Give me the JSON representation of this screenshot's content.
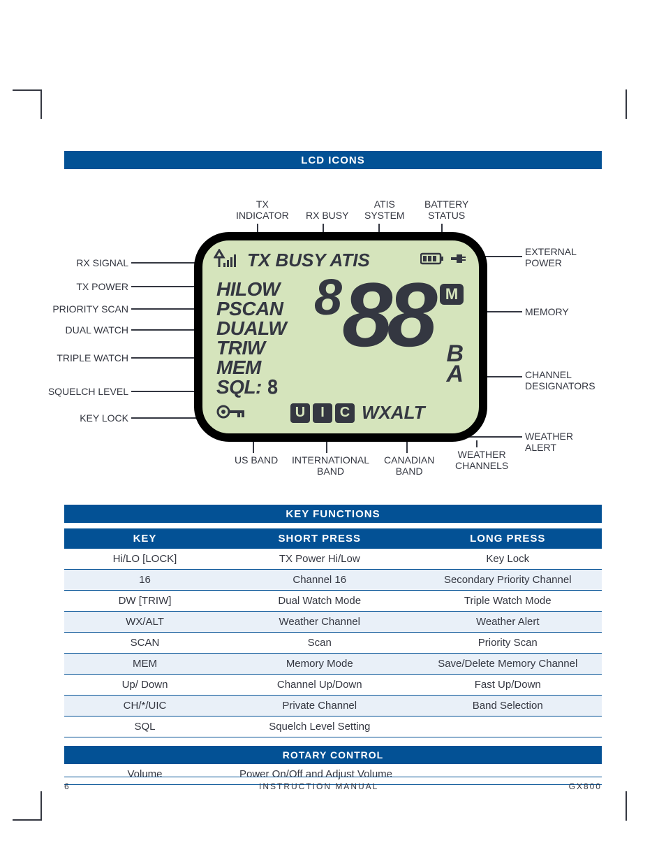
{
  "colors": {
    "header_blue": "#035195",
    "text": "#343741",
    "lcd_bg": "#d5e4bc",
    "lcd_border": "#000000",
    "shade_row": "#e9f0f8",
    "white": "#ffffff"
  },
  "headers": {
    "lcd_icons": "LCD ICONS",
    "key_functions": "KEY FUNCTIONS",
    "rotary_control": "ROTARY CONTROL"
  },
  "callouts": {
    "top": [
      {
        "label": "TX\nINDICATOR"
      },
      {
        "label": "RX BUSY"
      },
      {
        "label": "ATIS\nSYSTEM"
      },
      {
        "label": "BATTERY\nSTATUS"
      }
    ],
    "left": [
      "RX SIGNAL",
      "TX POWER",
      "PRIORITY SCAN",
      "DUAL WATCH",
      "TRIPLE WATCH",
      "SQUELCH LEVEL",
      "KEY LOCK"
    ],
    "right": [
      "EXTERNAL\nPOWER",
      "MEMORY",
      "CHANNEL\nDESIGNATORS",
      "WEATHER\nALERT"
    ],
    "bottom": [
      "US BAND",
      "INTERNATIONAL\nBAND",
      "CANADIAN\nBAND",
      "WEATHER\nCHANNELS"
    ]
  },
  "lcd": {
    "row1_text": "TX BUSY ATIS",
    "left_texts": [
      "HILOW",
      "PSCAN",
      "DUALW",
      "TRIW",
      "MEM",
      "SQL:"
    ],
    "m_label": "M",
    "b_label": "B",
    "a_label": "A",
    "uic": [
      "U",
      "I",
      "C"
    ],
    "wxalt": "WXALT",
    "sql_digit": "8",
    "channel_small": "8",
    "channel_large": "88"
  },
  "key_table": {
    "headers": [
      "KEY",
      "SHORT PRESS",
      "LONG PRESS"
    ],
    "rows": [
      [
        "Hi/LO [LOCK]",
        "TX Power Hi/Low",
        "Key Lock"
      ],
      [
        "16",
        "Channel 16",
        "Secondary Priority Channel"
      ],
      [
        "DW [TRIW]",
        "Dual Watch Mode",
        "Triple Watch Mode"
      ],
      [
        "WX/ALT",
        "Weather Channel",
        "Weather Alert"
      ],
      [
        "SCAN",
        "Scan",
        "Priority Scan"
      ],
      [
        "MEM",
        "Memory Mode",
        "Save/Delete Memory Channel"
      ],
      [
        "Up/ Down",
        "Channel Up/Down",
        "Fast Up/Down"
      ],
      [
        "CH/*/UIC",
        "Private Channel",
        "Band Selection"
      ],
      [
        "SQL",
        "Squelch Level Setting",
        ""
      ]
    ]
  },
  "rotary_table": {
    "rows": [
      [
        "Volume",
        "Power On/Off and Adjust Volume"
      ]
    ]
  },
  "footer": {
    "page": "6",
    "center": "INSTRUCTION MANUAL",
    "right": "GX800"
  }
}
